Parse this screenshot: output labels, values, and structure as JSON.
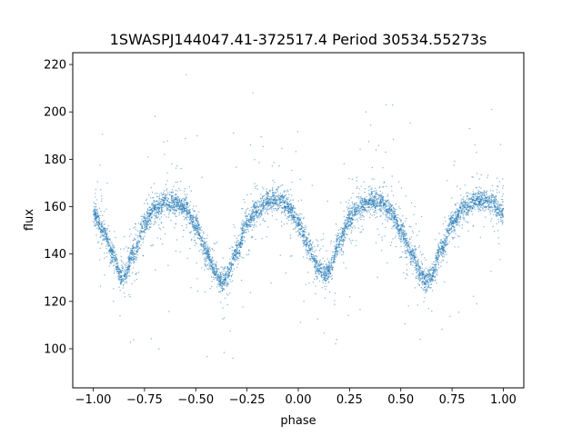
{
  "chart_data": {
    "type": "scatter",
    "title": "1SWASPJ144047.41-372517.4 Period 30534.55273s",
    "xlabel": "phase",
    "ylabel": "flux",
    "xlim": [
      -1.1,
      1.1
    ],
    "ylim": [
      83.5,
      225
    ],
    "xticks": [
      -1.0,
      -0.75,
      -0.5,
      -0.25,
      0.0,
      0.25,
      0.5,
      0.75,
      1.0
    ],
    "xtick_labels": [
      "−1.00",
      "−0.75",
      "−0.50",
      "−0.25",
      "0.00",
      "0.25",
      "0.50",
      "0.75",
      "1.00"
    ],
    "yticks": [
      100,
      120,
      140,
      160,
      180,
      200,
      220
    ],
    "ytick_labels": [
      "100",
      "120",
      "140",
      "160",
      "180",
      "200",
      "220"
    ],
    "grid": false,
    "marker_color": "#1f77b4",
    "light_curve": {
      "x": [
        -1.0,
        -0.95,
        -0.9,
        -0.87,
        -0.85,
        -0.8,
        -0.75,
        -0.7,
        -0.65,
        -0.6,
        -0.55,
        -0.5,
        -0.45,
        -0.4,
        -0.38,
        -0.35,
        -0.3,
        -0.25,
        -0.2,
        -0.15,
        -0.1,
        -0.05,
        0.0,
        0.05,
        0.1,
        0.13,
        0.15,
        0.2,
        0.25,
        0.3,
        0.35,
        0.4,
        0.45,
        0.5,
        0.55,
        0.6,
        0.62,
        0.65,
        0.7,
        0.75,
        0.8,
        0.85,
        0.9,
        0.95,
        1.0
      ],
      "y": [
        157,
        150,
        139,
        131,
        131,
        141,
        153,
        159,
        162,
        162,
        159,
        152,
        141,
        132,
        128,
        130,
        141,
        153,
        159,
        162,
        163,
        160,
        153,
        143,
        134,
        131,
        133,
        145,
        155,
        160,
        162,
        162,
        158,
        150,
        140,
        132,
        128,
        131,
        143,
        153,
        159,
        162,
        163,
        161,
        157
      ]
    }
  }
}
